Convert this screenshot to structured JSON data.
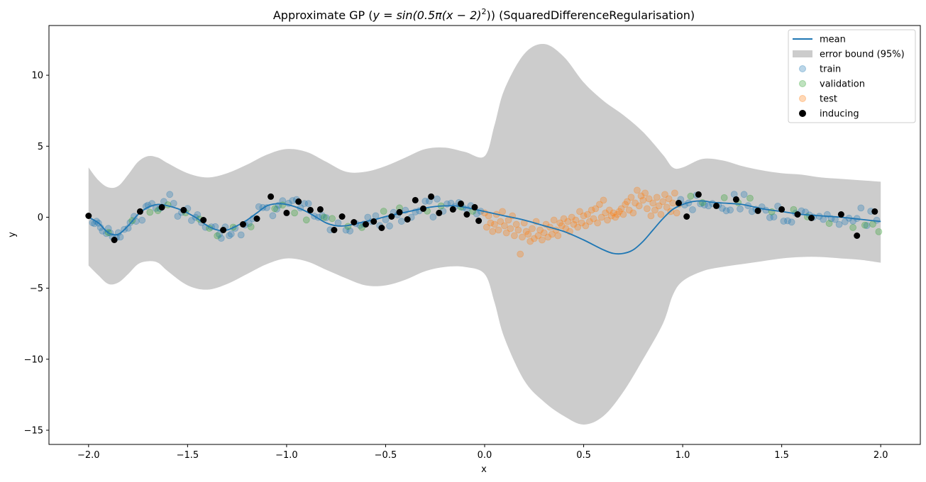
{
  "chart_data": {
    "type": "scatter",
    "title": "Approximate GP (y = sin(0.5π(x − 2)²)) (SquaredDifferenceRegularisation)",
    "title_parts": {
      "prefix": "Approximate GP (",
      "math": "y = sin(0.5π(x − 2)",
      "math_sup": "2",
      "math_close": "))",
      "suffix": " (SquaredDifferenceRegularisation)"
    },
    "xlabel": "x",
    "ylabel": "y",
    "xlim": [
      -2.2,
      2.2
    ],
    "ylim": [
      -16,
      13.5
    ],
    "xticks": [
      -2.0,
      -1.5,
      -1.0,
      -0.5,
      0.0,
      0.5,
      1.0,
      1.5,
      2.0
    ],
    "xtick_labels": [
      "−2.0",
      "−1.5",
      "−1.0",
      "−0.5",
      "0.0",
      "0.5",
      "1.0",
      "1.5",
      "2.0"
    ],
    "yticks": [
      -15,
      -10,
      -5,
      0,
      5,
      10
    ],
    "ytick_labels": [
      "−15",
      "−10",
      "−5",
      "0",
      "5",
      "10"
    ],
    "grid": false,
    "legend_position": "top-right",
    "colors": {
      "mean": "#1f77b4",
      "band": "#cccccc",
      "train": "#1f77b4",
      "validation": "#2ca02c",
      "test": "#ff7f0e",
      "inducing": "#000000"
    },
    "legend": [
      {
        "label": "mean",
        "kind": "line"
      },
      {
        "label": "error bound (95%)",
        "kind": "band"
      },
      {
        "label": "train",
        "kind": "train"
      },
      {
        "label": "validation",
        "kind": "validation"
      },
      {
        "label": "test",
        "kind": "test"
      },
      {
        "label": "inducing",
        "kind": "inducing"
      }
    ],
    "mean": {
      "x": [
        -2.0,
        -1.95,
        -1.9,
        -1.85,
        -1.8,
        -1.75,
        -1.7,
        -1.65,
        -1.6,
        -1.55,
        -1.5,
        -1.45,
        -1.4,
        -1.35,
        -1.3,
        -1.25,
        -1.2,
        -1.15,
        -1.1,
        -1.05,
        -1.0,
        -0.95,
        -0.9,
        -0.85,
        -0.8,
        -0.75,
        -0.7,
        -0.65,
        -0.6,
        -0.55,
        -0.5,
        -0.45,
        -0.4,
        -0.35,
        -0.3,
        -0.25,
        -0.2,
        -0.15,
        -0.1,
        -0.05,
        0.0,
        0.1,
        0.2,
        0.3,
        0.4,
        0.5,
        0.6,
        0.65,
        0.7,
        0.75,
        0.8,
        0.85,
        0.9,
        0.95,
        1.0,
        1.05,
        1.1,
        1.15,
        1.2,
        1.3,
        1.4,
        1.5,
        1.6,
        1.7,
        1.8,
        1.9,
        2.0
      ],
      "y": [
        0.0,
        -0.4,
        -1.1,
        -1.2,
        -0.6,
        0.2,
        0.7,
        0.9,
        0.8,
        0.6,
        0.3,
        -0.1,
        -0.6,
        -0.9,
        -0.9,
        -0.6,
        -0.2,
        0.3,
        0.8,
        0.95,
        0.9,
        0.7,
        0.4,
        0.0,
        -0.4,
        -0.6,
        -0.6,
        -0.45,
        -0.3,
        -0.15,
        0.05,
        0.2,
        0.35,
        0.5,
        0.65,
        0.75,
        0.8,
        0.8,
        0.7,
        0.55,
        0.4,
        0.1,
        -0.2,
        -0.6,
        -1.0,
        -1.6,
        -2.3,
        -2.55,
        -2.55,
        -2.3,
        -1.7,
        -0.9,
        -0.1,
        0.55,
        0.9,
        1.1,
        1.15,
        1.05,
        1.0,
        0.9,
        0.6,
        0.4,
        0.2,
        0.1,
        0.0,
        -0.15,
        -0.3
      ]
    },
    "error_bound": {
      "x": [
        -2.0,
        -1.95,
        -1.9,
        -1.85,
        -1.8,
        -1.75,
        -1.7,
        -1.65,
        -1.6,
        -1.5,
        -1.4,
        -1.3,
        -1.2,
        -1.1,
        -1.0,
        -0.9,
        -0.8,
        -0.7,
        -0.6,
        -0.5,
        -0.4,
        -0.3,
        -0.2,
        -0.1,
        0.0,
        0.05,
        0.1,
        0.2,
        0.3,
        0.4,
        0.5,
        0.6,
        0.7,
        0.8,
        0.9,
        0.95,
        1.0,
        1.1,
        1.2,
        1.3,
        1.4,
        1.5,
        1.6,
        1.7,
        1.8,
        1.9,
        2.0
      ],
      "upper": [
        3.5,
        2.6,
        2.1,
        2.2,
        3.0,
        3.9,
        4.3,
        4.2,
        3.8,
        3.1,
        2.8,
        3.1,
        3.7,
        4.4,
        4.8,
        4.6,
        3.9,
        3.2,
        3.2,
        3.6,
        4.2,
        4.8,
        4.9,
        4.6,
        4.3,
        6.5,
        9.0,
        11.5,
        12.2,
        11.3,
        9.5,
        8.2,
        7.2,
        6.0,
        4.4,
        3.5,
        3.5,
        4.1,
        4.0,
        3.6,
        3.3,
        3.1,
        3.0,
        2.8,
        2.7,
        2.6,
        2.5
      ],
      "lower": [
        -3.4,
        -4.1,
        -4.7,
        -4.6,
        -4.0,
        -3.3,
        -3.1,
        -3.2,
        -3.8,
        -4.8,
        -5.1,
        -4.7,
        -4.0,
        -3.3,
        -2.9,
        -3.1,
        -3.7,
        -4.3,
        -4.8,
        -4.8,
        -4.4,
        -3.8,
        -3.5,
        -3.5,
        -4.0,
        -6.0,
        -8.5,
        -11.5,
        -13.0,
        -14.0,
        -14.6,
        -14.0,
        -12.3,
        -10.0,
        -7.5,
        -5.5,
        -4.5,
        -3.8,
        -3.5,
        -3.3,
        -3.1,
        -2.9,
        -2.8,
        -2.8,
        -2.9,
        -3.0,
        -3.2
      ]
    },
    "inducing": {
      "x": [
        -2.0,
        -1.87,
        -1.74,
        -1.63,
        -1.52,
        -1.42,
        -1.32,
        -1.22,
        -1.15,
        -1.08,
        -1.0,
        -0.94,
        -0.88,
        -0.83,
        -0.76,
        -0.72,
        -0.66,
        -0.6,
        -0.56,
        -0.52,
        -0.47,
        -0.43,
        -0.39,
        -0.35,
        -0.31,
        -0.27,
        -0.23,
        -0.16,
        -0.12,
        -0.09,
        -0.05,
        -0.03,
        0.98,
        1.02,
        1.08,
        1.17,
        1.27,
        1.38,
        1.5,
        1.58,
        1.65,
        1.8,
        1.88,
        1.97
      ],
      "y": [
        0.1,
        -1.6,
        0.4,
        0.7,
        0.5,
        -0.2,
        -0.9,
        -0.5,
        -0.1,
        1.45,
        0.3,
        1.1,
        0.5,
        0.55,
        -0.9,
        0.05,
        -0.35,
        -0.5,
        -0.3,
        -0.75,
        0.05,
        0.35,
        -0.15,
        1.2,
        0.6,
        1.45,
        0.3,
        0.55,
        0.95,
        0.2,
        0.7,
        -0.25,
        1.0,
        0.05,
        1.6,
        0.8,
        1.25,
        0.45,
        0.55,
        0.2,
        -0.05,
        0.2,
        -1.3,
        0.4
      ]
    },
    "scatter_noise": 0.42,
    "train": {
      "x": [
        -1.98,
        -1.97,
        -1.96,
        -1.95,
        -1.94,
        -1.93,
        -1.91,
        -1.9,
        -1.89,
        -1.88,
        -1.86,
        -1.85,
        -1.84,
        -1.82,
        -1.8,
        -1.79,
        -1.77,
        -1.76,
        -1.73,
        -1.71,
        -1.7,
        -1.68,
        -1.66,
        -1.64,
        -1.62,
        -1.59,
        -1.57,
        -1.55,
        -1.53,
        -1.5,
        -1.48,
        -1.46,
        -1.45,
        -1.43,
        -1.41,
        -1.38,
        -1.36,
        -1.34,
        -1.33,
        -1.31,
        -1.29,
        -1.28,
        -1.26,
        -1.23,
        -1.21,
        -1.19,
        -1.17,
        -1.14,
        -1.12,
        -1.1,
        -1.07,
        -1.05,
        -1.04,
        -1.02,
        -0.99,
        -0.97,
        -0.95,
        -0.93,
        -0.91,
        -0.89,
        -0.86,
        -0.84,
        -0.82,
        -0.8,
        -0.78,
        -0.74,
        -0.7,
        -0.68,
        -0.65,
        -0.63,
        -0.61,
        -0.59,
        -0.57,
        -0.55,
        -0.53,
        -0.5,
        -0.48,
        -0.46,
        -0.44,
        -0.42,
        -0.4,
        -0.37,
        -0.35,
        -0.33,
        -0.3,
        -0.28,
        -0.26,
        -0.24,
        -0.21,
        -0.19,
        -0.17,
        -0.15,
        -0.13,
        -0.11,
        -0.09,
        -0.07,
        -0.04,
        -0.02,
        0.99,
        1.01,
        1.03,
        1.05,
        1.07,
        1.09,
        1.11,
        1.13,
        1.15,
        1.18,
        1.2,
        1.22,
        1.24,
        1.26,
        1.29,
        1.31,
        1.33,
        1.35,
        1.37,
        1.4,
        1.42,
        1.44,
        1.46,
        1.48,
        1.51,
        1.53,
        1.55,
        1.57,
        1.6,
        1.62,
        1.64,
        1.66,
        1.69,
        1.71,
        1.73,
        1.75,
        1.77,
        1.79,
        1.82,
        1.84,
        1.86,
        1.88,
        1.9,
        1.93,
        1.95,
        1.98
      ]
    },
    "validation": {
      "x": [
        -1.9,
        -1.78,
        -1.69,
        -1.65,
        -1.6,
        -1.51,
        -1.44,
        -1.39,
        -1.35,
        -1.27,
        -1.18,
        -1.06,
        -1.02,
        -0.96,
        -0.9,
        -0.81,
        -0.77,
        -0.69,
        -0.62,
        -0.51,
        -0.43,
        -0.29,
        -0.22,
        -0.12,
        -0.06,
        1.04,
        1.1,
        1.21,
        1.28,
        1.34,
        1.45,
        1.56,
        1.63,
        1.74,
        1.86,
        1.92,
        1.96,
        1.99
      ]
    },
    "test": {
      "x": [
        0.0,
        0.01,
        0.02,
        0.03,
        0.04,
        0.05,
        0.06,
        0.07,
        0.08,
        0.09,
        0.1,
        0.11,
        0.12,
        0.13,
        0.14,
        0.15,
        0.16,
        0.17,
        0.18,
        0.19,
        0.2,
        0.21,
        0.22,
        0.23,
        0.24,
        0.25,
        0.26,
        0.27,
        0.28,
        0.29,
        0.3,
        0.31,
        0.32,
        0.33,
        0.34,
        0.35,
        0.36,
        0.37,
        0.38,
        0.39,
        0.4,
        0.41,
        0.42,
        0.43,
        0.44,
        0.45,
        0.46,
        0.47,
        0.48,
        0.49,
        0.5,
        0.51,
        0.52,
        0.53,
        0.54,
        0.55,
        0.56,
        0.57,
        0.58,
        0.59,
        0.6,
        0.61,
        0.62,
        0.63,
        0.64,
        0.65,
        0.66,
        0.67,
        0.68,
        0.69,
        0.7,
        0.71,
        0.72,
        0.73,
        0.74,
        0.75,
        0.76,
        0.77,
        0.78,
        0.79,
        0.8,
        0.81,
        0.82,
        0.83,
        0.84,
        0.85,
        0.86,
        0.87,
        0.88,
        0.89,
        0.9,
        0.91,
        0.92,
        0.93,
        0.94,
        0.95,
        0.96,
        0.97,
        0.98
      ],
      "y": [
        0.3,
        -0.7,
        0.1,
        -0.4,
        -1.0,
        -0.5,
        0.2,
        -0.9,
        -0.3,
        0.4,
        -0.6,
        -1.1,
        -0.2,
        -0.8,
        0.1,
        -1.3,
        -0.5,
        -0.9,
        -2.6,
        -1.4,
        -0.4,
        -1.0,
        -1.2,
        -1.7,
        -0.8,
        -1.5,
        -0.3,
        -1.3,
        -0.9,
        -1.6,
        -1.1,
        -0.5,
        -1.4,
        -0.7,
        -1.2,
        -0.2,
        -0.9,
        -1.3,
        -0.4,
        -0.6,
        -0.1,
        -0.8,
        -0.3,
        -1.0,
        0.0,
        -0.5,
        -0.2,
        -0.7,
        0.4,
        -0.4,
        0.1,
        -0.6,
        0.2,
        -0.3,
        0.5,
        -0.1,
        0.6,
        -0.4,
        0.9,
        0.0,
        1.2,
        0.3,
        -0.2,
        0.5,
        0.1,
        0.3,
        0.0,
        0.2,
        0.4,
        0.6,
        0.2,
        0.9,
        1.1,
        0.5,
        1.4,
        0.3,
        1.0,
        1.9,
        0.8,
        1.5,
        1.2,
        1.7,
        0.6,
        1.3,
        0.1,
        1.0,
        0.5,
        1.4,
        0.8,
        0.2,
        1.1,
        1.6,
        0.7,
        1.3,
        0.4,
        1.0,
        1.7,
        0.3,
        0.9
      ]
    }
  }
}
